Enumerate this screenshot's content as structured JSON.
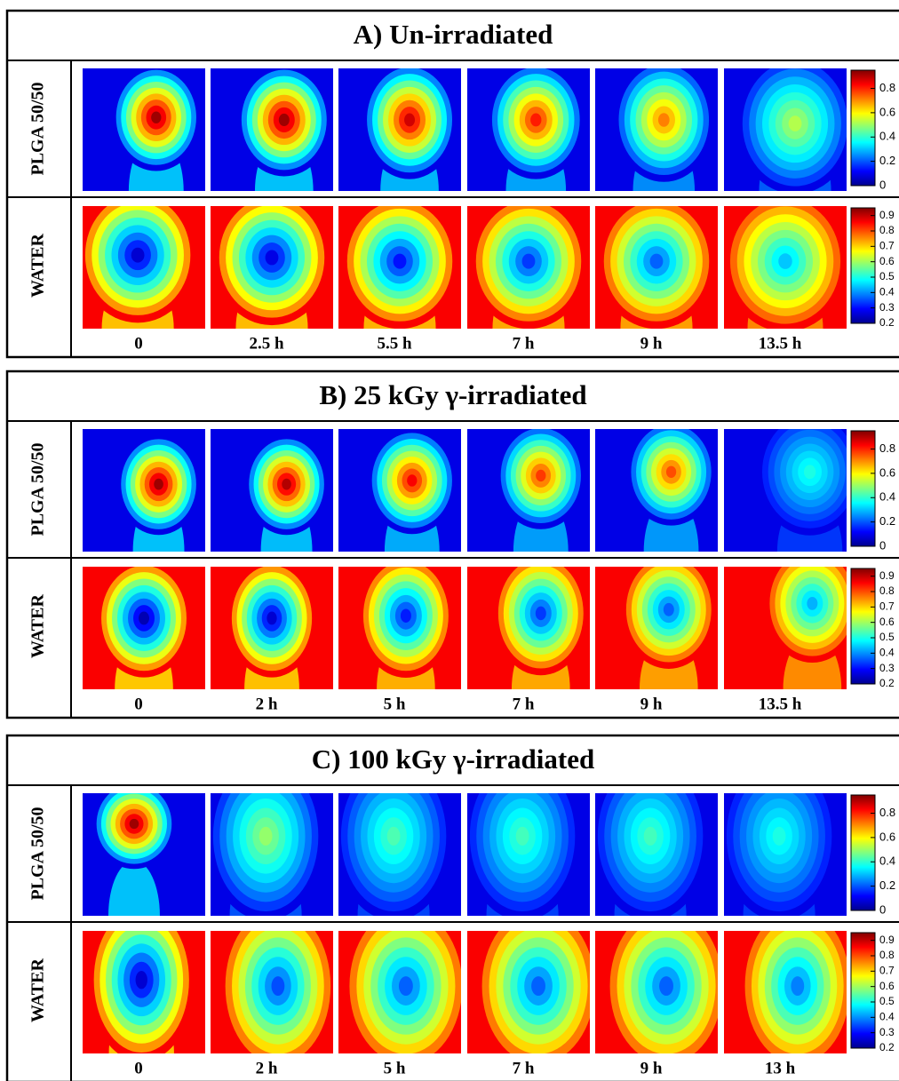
{
  "panels": [
    {
      "title": "A) Un-irradiated",
      "rows": [
        {
          "label": "PLGA 50/50",
          "colorbar": {
            "clim": [
              0,
              0.95
            ],
            "ticks": [
              0,
              0.2,
              0.4,
              0.6,
              0.8
            ]
          }
        },
        {
          "label": "WATER",
          "colorbar": {
            "clim": [
              0.2,
              0.95
            ],
            "ticks": [
              0.2,
              0.3,
              0.4,
              0.5,
              0.6,
              0.7,
              0.8,
              0.9
            ]
          }
        }
      ],
      "times": [
        "0",
        "2.5 h",
        "5.5 h",
        "7 h",
        "9 h",
        "13.5 h"
      ]
    },
    {
      "title": "B) 25 kGy γ-irradiated",
      "rows": [
        {
          "label": "PLGA 50/50",
          "colorbar": {
            "clim": [
              0,
              0.95
            ],
            "ticks": [
              0,
              0.2,
              0.4,
              0.6,
              0.8
            ]
          }
        },
        {
          "label": "WATER",
          "colorbar": {
            "clim": [
              0.2,
              0.95
            ],
            "ticks": [
              0.2,
              0.3,
              0.4,
              0.5,
              0.6,
              0.7,
              0.8,
              0.9
            ]
          }
        }
      ],
      "times": [
        "0",
        "2 h",
        "5 h",
        "7 h",
        "9 h",
        "13.5 h"
      ]
    },
    {
      "title": "C) 100 kGy γ-irradiated",
      "rows": [
        {
          "label": "PLGA 50/50",
          "colorbar": {
            "clim": [
              0,
              0.95
            ],
            "ticks": [
              0,
              0.2,
              0.4,
              0.6,
              0.8
            ]
          }
        },
        {
          "label": "WATER",
          "colorbar": {
            "clim": [
              0.2,
              0.95
            ],
            "ticks": [
              0.2,
              0.3,
              0.4,
              0.5,
              0.6,
              0.7,
              0.8,
              0.9
            ]
          }
        }
      ],
      "times": [
        "0",
        "2 h",
        "5 h",
        "7 h",
        "9 h",
        "13 h"
      ]
    }
  ]
}
